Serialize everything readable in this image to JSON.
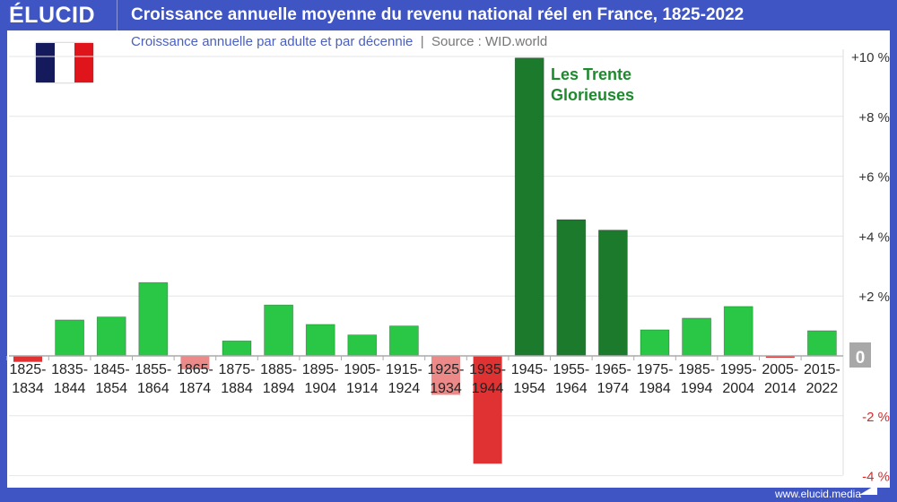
{
  "header": {
    "logo": "ÉLUCID",
    "title": "Croissance annuelle moyenne du revenu national réel en France, 1825-2022"
  },
  "subtitle": {
    "main": "Croissance annuelle par adulte et par décennie",
    "separator": "|",
    "source": "Source : WID.world"
  },
  "footer": {
    "url": "www.elucid.media"
  },
  "annotation": {
    "line1": "Les Trente",
    "line2": "Glorieuses"
  },
  "colors": {
    "positive": "#2ac746",
    "highlight": "#1b7a2c",
    "negative": "#e03232",
    "negative_light": "#ec8a8a",
    "frame": "#3f55c4"
  },
  "chart_data": {
    "type": "bar",
    "title": "Croissance annuelle moyenne du revenu national réel en France, 1825-2022",
    "categories": [
      [
        "1825-",
        "1834"
      ],
      [
        "1835-",
        "1844"
      ],
      [
        "1845-",
        "1854"
      ],
      [
        "1855-",
        "1864"
      ],
      [
        "1865-",
        "1874"
      ],
      [
        "1875-",
        "1884"
      ],
      [
        "1885-",
        "1894"
      ],
      [
        "1895-",
        "1904"
      ],
      [
        "1905-",
        "1914"
      ],
      [
        "1915-",
        "1924"
      ],
      [
        "1925-",
        "1934"
      ],
      [
        "1935-",
        "1944"
      ],
      [
        "1945-",
        "1954"
      ],
      [
        "1955-",
        "1964"
      ],
      [
        "1965-",
        "1974"
      ],
      [
        "1975-",
        "1984"
      ],
      [
        "1985-",
        "1994"
      ],
      [
        "1995-",
        "2004"
      ],
      [
        "2005-",
        "2014"
      ],
      [
        "2015-",
        "2022"
      ]
    ],
    "values": [
      -0.2,
      1.2,
      1.3,
      2.45,
      -0.45,
      0.5,
      1.7,
      1.05,
      0.7,
      1.0,
      -1.3,
      -3.6,
      9.95,
      4.55,
      4.2,
      0.87,
      1.26,
      1.65,
      -0.05,
      0.84
    ],
    "highlighted": [
      "1945-1954",
      "1955-1964",
      "1965-1974"
    ],
    "ylim": [
      -4,
      10
    ],
    "yticks": [
      {
        "v": 10,
        "label": "+10 %"
      },
      {
        "v": 8,
        "label": "+8 %"
      },
      {
        "v": 6,
        "label": "+6 %"
      },
      {
        "v": 4,
        "label": "+4 %"
      },
      {
        "v": 2,
        "label": "+2 %"
      },
      {
        "v": 0,
        "label": "0"
      },
      {
        "v": -2,
        "label": "-2 %"
      },
      {
        "v": -4,
        "label": "-4 %"
      }
    ],
    "y_axis_position": "right",
    "grid": true
  }
}
